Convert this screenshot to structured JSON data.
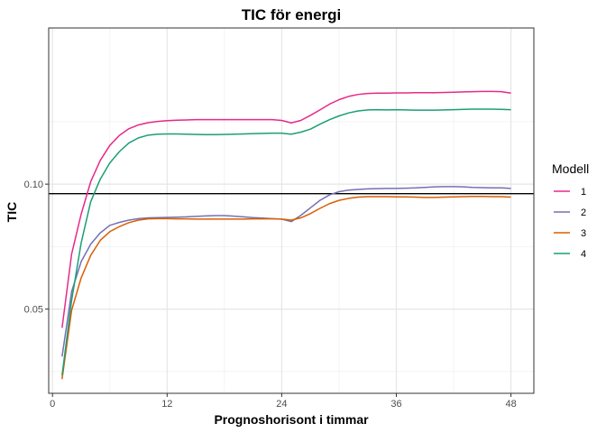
{
  "chart_data": {
    "type": "line",
    "title": "TIC för energi",
    "xlabel": "Prognoshorisont i timmar",
    "ylabel": "TIC",
    "xlim": [
      -0.4,
      50.4
    ],
    "ylim": [
      0.0163,
      0.1625
    ],
    "xticks": [
      0,
      12,
      24,
      36,
      48
    ],
    "xtick_labels": [
      "0",
      "12",
      "24",
      "36",
      "48"
    ],
    "yticks": [
      0.05,
      0.1
    ],
    "ytick_labels": [
      "0.05",
      "0.10"
    ],
    "grid": true,
    "legend": {
      "title": "Modell",
      "position": "right"
    },
    "hline": 0.0962,
    "x": [
      1,
      2,
      3,
      4,
      5,
      6,
      7,
      8,
      9,
      10,
      11,
      12,
      13,
      14,
      15,
      16,
      17,
      18,
      19,
      20,
      21,
      22,
      23,
      24,
      25,
      26,
      27,
      28,
      29,
      30,
      31,
      32,
      33,
      34,
      35,
      36,
      37,
      38,
      39,
      40,
      41,
      42,
      43,
      44,
      45,
      46,
      47,
      48
    ],
    "series": [
      {
        "name": "1",
        "color": "#E7298A",
        "values": [
          0.0425,
          0.072,
          0.088,
          0.101,
          0.1095,
          0.1155,
          0.1195,
          0.1222,
          0.1237,
          0.1246,
          0.1251,
          0.1254,
          0.1256,
          0.1257,
          0.1258,
          0.1258,
          0.1258,
          0.1258,
          0.1258,
          0.1258,
          0.1258,
          0.1258,
          0.1258,
          0.1255,
          0.1245,
          0.1255,
          0.1275,
          0.1297,
          0.132,
          0.1338,
          0.1351,
          0.1359,
          0.1363,
          0.1364,
          0.1364,
          0.1365,
          0.1365,
          0.1366,
          0.1366,
          0.1366,
          0.1367,
          0.1368,
          0.1369,
          0.137,
          0.1371,
          0.1371,
          0.137,
          0.1364
        ]
      },
      {
        "name": "2",
        "color": "#7570B3",
        "values": [
          0.031,
          0.057,
          0.069,
          0.076,
          0.0805,
          0.0835,
          0.0847,
          0.0856,
          0.0862,
          0.0865,
          0.0866,
          0.0867,
          0.0868,
          0.0869,
          0.0871,
          0.0873,
          0.0874,
          0.0874,
          0.0872,
          0.0869,
          0.0866,
          0.0864,
          0.0862,
          0.086,
          0.085,
          0.0875,
          0.0905,
          0.0935,
          0.0957,
          0.097,
          0.0976,
          0.0979,
          0.0981,
          0.0982,
          0.0983,
          0.0983,
          0.0984,
          0.0985,
          0.0987,
          0.0989,
          0.099,
          0.099,
          0.0989,
          0.0987,
          0.0986,
          0.0985,
          0.0985,
          0.0983
        ]
      },
      {
        "name": "3",
        "color": "#D95F02",
        "values": [
          0.022,
          0.0495,
          0.0625,
          0.0715,
          0.0775,
          0.081,
          0.083,
          0.0846,
          0.0856,
          0.0861,
          0.0862,
          0.0862,
          0.0861,
          0.0861,
          0.086,
          0.086,
          0.086,
          0.086,
          0.086,
          0.086,
          0.0861,
          0.0861,
          0.0861,
          0.086,
          0.0856,
          0.0865,
          0.0882,
          0.0903,
          0.0922,
          0.0935,
          0.0943,
          0.0948,
          0.095,
          0.095,
          0.095,
          0.0949,
          0.0949,
          0.0948,
          0.0947,
          0.0947,
          0.0948,
          0.0949,
          0.095,
          0.0951,
          0.0951,
          0.095,
          0.095,
          0.0948
        ]
      },
      {
        "name": "4",
        "color": "#1B9E77",
        "values": [
          0.0235,
          0.0535,
          0.0765,
          0.093,
          0.102,
          0.1085,
          0.113,
          0.1165,
          0.1185,
          0.1196,
          0.12,
          0.1201,
          0.1201,
          0.12,
          0.1199,
          0.1198,
          0.1198,
          0.1199,
          0.12,
          0.1201,
          0.1202,
          0.1203,
          0.1204,
          0.1204,
          0.12,
          0.1208,
          0.122,
          0.124,
          0.1258,
          0.1273,
          0.1285,
          0.1293,
          0.1297,
          0.1298,
          0.1297,
          0.1298,
          0.1297,
          0.1296,
          0.1296,
          0.1296,
          0.1297,
          0.1298,
          0.1299,
          0.13,
          0.13,
          0.13,
          0.1299,
          0.1298
        ]
      }
    ]
  }
}
